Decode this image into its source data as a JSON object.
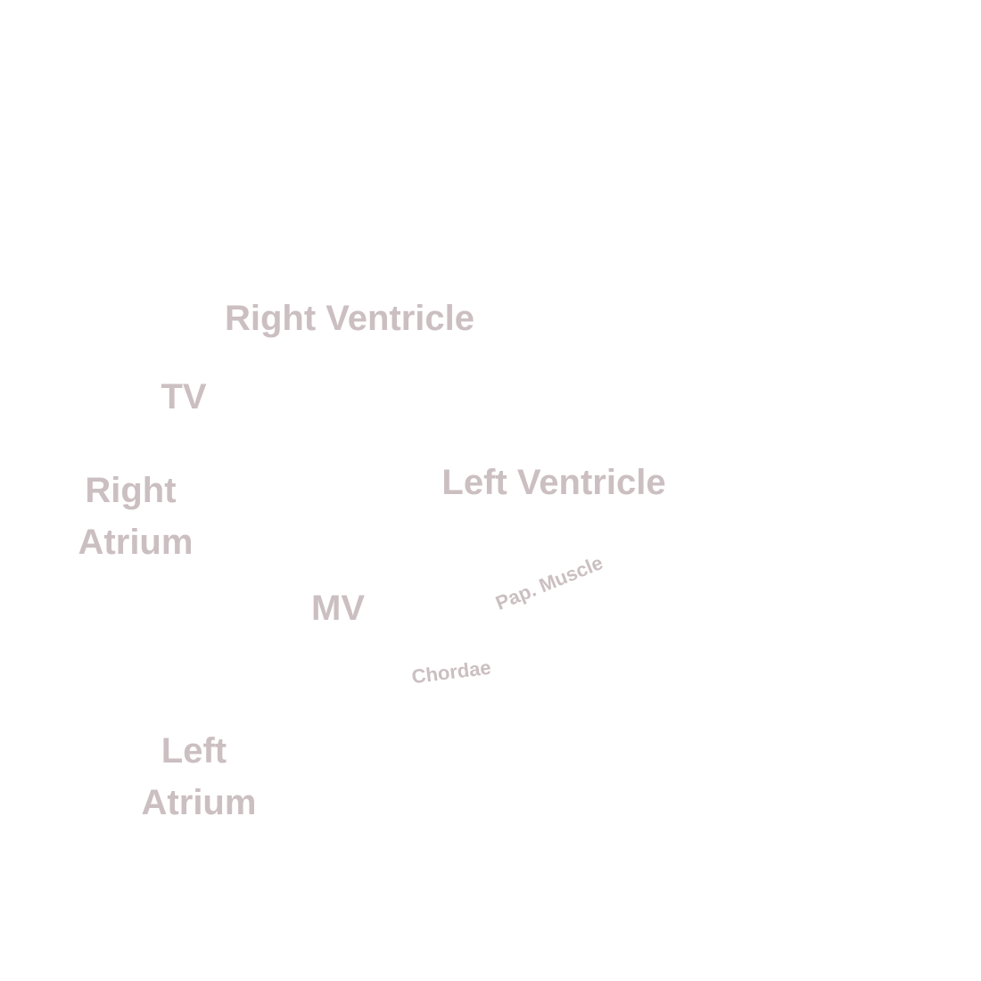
{
  "labels": {
    "right_ventricle": "Right Ventricle",
    "tv": "TV",
    "right_atrium": [
      "Right",
      "Atrium"
    ],
    "left_ventricle": "Left Ventricle",
    "pap_muscle": "Pap. Muscle",
    "mv": "MV",
    "chordae": "Chordae",
    "left_atrium": [
      "Left",
      "Atrium"
    ]
  },
  "colors": {
    "label": "#cbbfc1",
    "background": "#ffffff"
  }
}
